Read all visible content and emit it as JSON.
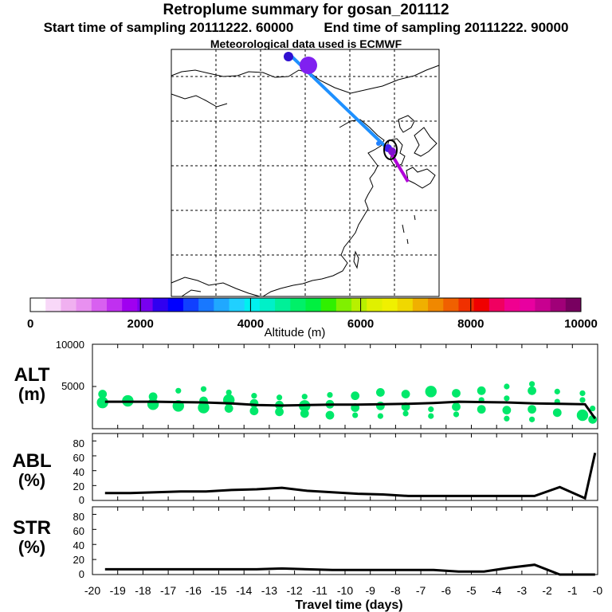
{
  "header": {
    "title": "Retroplume summary for gosan_201112",
    "start_label": "Start time of sampling 20111222. 60000",
    "end_label": "End time of sampling 20111222. 90000",
    "met_label": "Meteorological data used is ECMWF"
  },
  "colorbar": {
    "ticks": [
      "0",
      "2000",
      "4000",
      "6000",
      "8000",
      "10000"
    ],
    "label": "Altitude (m)",
    "colors": [
      "#ffffff",
      "#f8d8f8",
      "#f0b0f0",
      "#e890f0",
      "#d860f0",
      "#c030f0",
      "#a000f0",
      "#7800f0",
      "#3000f0",
      "#0000ff",
      "#1040ff",
      "#1878ff",
      "#20a8ff",
      "#20d0ff",
      "#00f0f0",
      "#00f0c8",
      "#00f098",
      "#00f068",
      "#00f040",
      "#30f000",
      "#80f000",
      "#b8f000",
      "#e0f000",
      "#f0f000",
      "#f0d800",
      "#f0b000",
      "#f08800",
      "#f06000",
      "#f03000",
      "#f00000",
      "#f00060",
      "#f00090",
      "#e800a0",
      "#c80090",
      "#a00078",
      "#780060"
    ]
  },
  "alt_panel": {
    "label_line1": "ALT",
    "label_line2": "(m)",
    "y_ticks": [
      "10000",
      "5000"
    ]
  },
  "abl_panel": {
    "label_line1": "ABL",
    "label_line2": "(%)",
    "y_ticks": [
      "80",
      "60",
      "40",
      "20",
      "0"
    ]
  },
  "str_panel": {
    "label_line1": "STR",
    "label_line2": "(%)",
    "y_ticks": [
      "80",
      "60",
      "40",
      "20",
      "0"
    ]
  },
  "x_axis": {
    "label": "Travel time (days)",
    "tick_labels": [
      "-20",
      "-19",
      "-18",
      "-17",
      "-16",
      "-15",
      "-14",
      "-13",
      "-12",
      "-11",
      "-10",
      "-9",
      "-8",
      "-7",
      "-6",
      "-5",
      "-4",
      "-3",
      "-2",
      "-1",
      "-0"
    ]
  },
  "chart_data": [
    {
      "type": "line",
      "name": "altitude",
      "title": "ALT (m)",
      "xlabel": "Travel time (days)",
      "ylabel": "Altitude (m)",
      "xlim": [
        -20,
        0
      ],
      "ylim": [
        0,
        10000
      ],
      "x": [
        -19.5,
        -18.5,
        -17.5,
        -16.5,
        -15.5,
        -14.5,
        -13.5,
        -12.5,
        -11.5,
        -10.5,
        -9.5,
        -8.5,
        -7.5,
        -6.5,
        -5.5,
        -4.5,
        -3.5,
        -2.5,
        -1.5,
        -0.5,
        -0.1
      ],
      "values": [
        3200,
        3200,
        3200,
        3150,
        3100,
        3000,
        2800,
        2750,
        2800,
        2850,
        2850,
        2900,
        2950,
        3050,
        3200,
        3150,
        3100,
        3000,
        2950,
        2900,
        1200
      ],
      "plume_points": [
        {
          "x": -19.6,
          "y": 3100,
          "s": 3
        },
        {
          "x": -19.6,
          "y": 4100,
          "s": 2
        },
        {
          "x": -18.6,
          "y": 3300,
          "s": 3
        },
        {
          "x": -17.6,
          "y": 2900,
          "s": 3
        },
        {
          "x": -17.6,
          "y": 3800,
          "s": 2
        },
        {
          "x": -16.6,
          "y": 2700,
          "s": 3
        },
        {
          "x": -16.6,
          "y": 4500,
          "s": 1
        },
        {
          "x": -15.6,
          "y": 2500,
          "s": 3
        },
        {
          "x": -15.6,
          "y": 3300,
          "s": 2
        },
        {
          "x": -15.6,
          "y": 4700,
          "s": 1
        },
        {
          "x": -14.6,
          "y": 2400,
          "s": 2
        },
        {
          "x": -14.6,
          "y": 3400,
          "s": 3
        },
        {
          "x": -14.6,
          "y": 4300,
          "s": 1
        },
        {
          "x": -13.6,
          "y": 2100,
          "s": 2
        },
        {
          "x": -13.6,
          "y": 3000,
          "s": 2
        },
        {
          "x": -13.6,
          "y": 3900,
          "s": 1
        },
        {
          "x": -12.6,
          "y": 2000,
          "s": 2
        },
        {
          "x": -12.6,
          "y": 2800,
          "s": 2
        },
        {
          "x": -12.6,
          "y": 3700,
          "s": 1
        },
        {
          "x": -11.6,
          "y": 1800,
          "s": 2
        },
        {
          "x": -11.6,
          "y": 2700,
          "s": 3
        },
        {
          "x": -11.6,
          "y": 3800,
          "s": 1
        },
        {
          "x": -10.6,
          "y": 1600,
          "s": 2
        },
        {
          "x": -10.6,
          "y": 2900,
          "s": 2
        },
        {
          "x": -10.6,
          "y": 4000,
          "s": 1
        },
        {
          "x": -9.6,
          "y": 1600,
          "s": 1
        },
        {
          "x": -9.6,
          "y": 2500,
          "s": 2
        },
        {
          "x": -9.6,
          "y": 3900,
          "s": 2
        },
        {
          "x": -8.6,
          "y": 1500,
          "s": 1
        },
        {
          "x": -8.6,
          "y": 2700,
          "s": 2
        },
        {
          "x": -8.6,
          "y": 4300,
          "s": 2
        },
        {
          "x": -7.6,
          "y": 1800,
          "s": 1
        },
        {
          "x": -7.6,
          "y": 2600,
          "s": 2
        },
        {
          "x": -7.6,
          "y": 4100,
          "s": 2
        },
        {
          "x": -6.6,
          "y": 1500,
          "s": 1
        },
        {
          "x": -6.6,
          "y": 2300,
          "s": 1
        },
        {
          "x": -6.6,
          "y": 4400,
          "s": 3
        },
        {
          "x": -5.6,
          "y": 1700,
          "s": 1
        },
        {
          "x": -5.6,
          "y": 2600,
          "s": 2
        },
        {
          "x": -5.6,
          "y": 4200,
          "s": 2
        },
        {
          "x": -4.6,
          "y": 2300,
          "s": 2
        },
        {
          "x": -4.6,
          "y": 3400,
          "s": 1
        },
        {
          "x": -4.6,
          "y": 4500,
          "s": 2
        },
        {
          "x": -3.6,
          "y": 1200,
          "s": 1
        },
        {
          "x": -3.6,
          "y": 2200,
          "s": 2
        },
        {
          "x": -3.6,
          "y": 3600,
          "s": 1
        },
        {
          "x": -3.6,
          "y": 5000,
          "s": 1
        },
        {
          "x": -2.6,
          "y": 1100,
          "s": 1
        },
        {
          "x": -2.6,
          "y": 2300,
          "s": 2
        },
        {
          "x": -2.6,
          "y": 4500,
          "s": 2
        },
        {
          "x": -2.6,
          "y": 5300,
          "s": 1
        },
        {
          "x": -1.6,
          "y": 1900,
          "s": 2
        },
        {
          "x": -1.6,
          "y": 3200,
          "s": 1
        },
        {
          "x": -1.6,
          "y": 4400,
          "s": 1
        },
        {
          "x": -0.6,
          "y": 1600,
          "s": 3
        },
        {
          "x": -0.6,
          "y": 3400,
          "s": 1
        },
        {
          "x": -0.6,
          "y": 4200,
          "s": 1
        },
        {
          "x": -0.2,
          "y": 1100,
          "s": 2
        },
        {
          "x": -0.2,
          "y": 2400,
          "s": 1
        }
      ]
    },
    {
      "type": "line",
      "name": "abl",
      "title": "ABL (%)",
      "xlabel": "Travel time (days)",
      "ylabel": "ABL (%)",
      "xlim": [
        -20,
        0
      ],
      "ylim": [
        0,
        90
      ],
      "x": [
        -19.5,
        -18.5,
        -17.5,
        -16.5,
        -15.5,
        -14.5,
        -13.5,
        -12.5,
        -11.5,
        -10.5,
        -9.5,
        -8.5,
        -7.5,
        -6.5,
        -5.5,
        -4.5,
        -3.5,
        -2.5,
        -1.5,
        -0.5,
        -0.1
      ],
      "values": [
        10,
        10,
        11,
        12,
        12,
        14,
        15,
        17,
        13,
        11,
        9,
        8,
        6,
        6,
        6,
        6,
        6,
        6,
        18,
        3,
        64
      ]
    },
    {
      "type": "line",
      "name": "str",
      "title": "STR (%)",
      "xlabel": "Travel time (days)",
      "ylabel": "STR (%)",
      "xlim": [
        -20,
        0
      ],
      "ylim": [
        0,
        90
      ],
      "x": [
        -19.5,
        -18.5,
        -17.5,
        -16.5,
        -15.5,
        -14.5,
        -13.5,
        -12.5,
        -11.5,
        -10.5,
        -9.5,
        -8.5,
        -7.5,
        -6.5,
        -5.5,
        -4.5,
        -3.5,
        -2.5,
        -1.5,
        -0.5,
        -0.1
      ],
      "values": [
        7,
        7,
        7,
        7,
        7,
        7,
        7,
        8,
        7,
        6,
        6,
        6,
        6,
        6,
        4,
        4,
        9,
        13,
        0,
        0,
        0
      ]
    }
  ]
}
